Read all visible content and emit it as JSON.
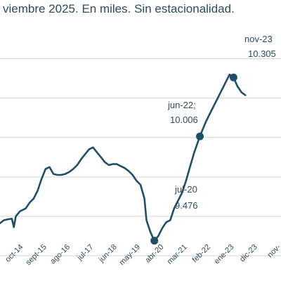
{
  "chart_data": {
    "type": "line",
    "subtitle": "viembre 2025. En miles. Sin estacionalidad.",
    "ylim": [
      9200,
      10620
    ],
    "gridlines": [
      10400,
      10200,
      10000,
      9800,
      9600,
      9400
    ],
    "grid": true,
    "line_color": "#1f4e68",
    "x_start": "2014-01",
    "x_end": "2025-11",
    "x_tick_labels": [
      "",
      "oct-14",
      "sept-15",
      "ago-16",
      "jul-17",
      "jun-18",
      "may-19",
      "abr-20",
      "mar-21",
      "feb-22",
      "ene-23",
      "dic-23",
      "nov-"
    ],
    "series": [
      {
        "values": [
          [
            "2014-01",
            9565
          ],
          [
            "2014-03",
            9580
          ],
          [
            "2014-05",
            9585
          ],
          [
            "2014-07",
            9588
          ],
          [
            "2014-08",
            9545
          ],
          [
            "2014-09",
            9600
          ],
          [
            "2014-11",
            9625
          ],
          [
            "2014-12",
            9630
          ],
          [
            "2015-02",
            9640
          ],
          [
            "2015-04",
            9670
          ],
          [
            "2015-06",
            9690
          ],
          [
            "2015-08",
            9730
          ],
          [
            "2015-10",
            9790
          ],
          [
            "2015-12",
            9840
          ],
          [
            "2016-02",
            9850
          ],
          [
            "2016-04",
            9815
          ],
          [
            "2016-06",
            9810
          ],
          [
            "2016-08",
            9810
          ],
          [
            "2016-10",
            9815
          ],
          [
            "2016-12",
            9825
          ],
          [
            "2017-02",
            9840
          ],
          [
            "2017-04",
            9860
          ],
          [
            "2017-06",
            9890
          ],
          [
            "2017-08",
            9915
          ],
          [
            "2017-10",
            9940
          ],
          [
            "2017-12",
            9950
          ],
          [
            "2018-02",
            9925
          ],
          [
            "2018-04",
            9900
          ],
          [
            "2018-06",
            9875
          ],
          [
            "2018-08",
            9860
          ],
          [
            "2018-10",
            9865
          ],
          [
            "2018-12",
            9865
          ],
          [
            "2019-02",
            9855
          ],
          [
            "2019-04",
            9845
          ],
          [
            "2019-06",
            9830
          ],
          [
            "2019-08",
            9810
          ],
          [
            "2019-10",
            9780
          ],
          [
            "2019-12",
            9760
          ],
          [
            "2020-02",
            9690
          ],
          [
            "2020-03",
            9580
          ],
          [
            "2020-05",
            9520
          ],
          [
            "2020-07",
            9476
          ],
          [
            "2020-09",
            9500
          ],
          [
            "2020-11",
            9540
          ],
          [
            "2021-01",
            9570
          ],
          [
            "2021-03",
            9580
          ],
          [
            "2021-05",
            9640
          ],
          [
            "2021-07",
            9680
          ],
          [
            "2021-09",
            9720
          ],
          [
            "2021-11",
            9780
          ],
          [
            "2022-01",
            9850
          ],
          [
            "2022-03",
            9920
          ],
          [
            "2022-06",
            10006
          ],
          [
            "2022-09",
            10080
          ],
          [
            "2022-12",
            10140
          ],
          [
            "2023-03",
            10200
          ],
          [
            "2023-06",
            10260
          ],
          [
            "2023-09",
            10320
          ],
          [
            "2023-11",
            10305
          ],
          [
            "2024-01",
            10260
          ],
          [
            "2024-03",
            10230
          ],
          [
            "2024-05",
            10215
          ]
        ]
      }
    ],
    "markers": [
      {
        "date": "2020-07",
        "value": 9476
      },
      {
        "date": "2022-06",
        "value": 10006
      },
      {
        "date": "2023-11",
        "value": 10305
      }
    ],
    "annotations": [
      {
        "lines": [
          "jul-20",
          "9.476"
        ]
      },
      {
        "lines": [
          "jun-22;",
          "10.006"
        ]
      },
      {
        "lines": [
          "nov-23",
          "10.305"
        ]
      }
    ]
  }
}
